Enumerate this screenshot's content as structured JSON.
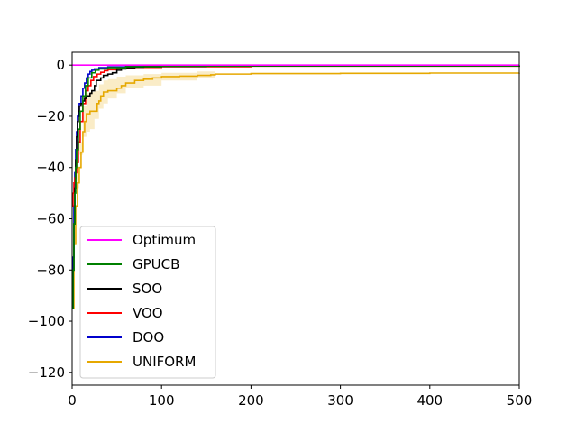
{
  "chart_data": {
    "type": "line",
    "title": "",
    "xlabel": "",
    "ylabel": "",
    "xlim": [
      0,
      500
    ],
    "ylim": [
      -125,
      5
    ],
    "x_ticks": [
      0,
      100,
      200,
      300,
      400,
      500
    ],
    "y_ticks": [
      0,
      -20,
      -40,
      -60,
      -80,
      -100,
      -120
    ],
    "x_tick_labels": [
      "0",
      "100",
      "200",
      "300",
      "400",
      "500"
    ],
    "y_tick_labels": [
      "0",
      "−20",
      "−40",
      "−60",
      "−80",
      "−100",
      "−120"
    ],
    "grid": false,
    "legend_position": "lower-left",
    "series": [
      {
        "name": "Optimum",
        "color": "#ff00ff",
        "x": [
          0,
          500
        ],
        "y": [
          0,
          0
        ]
      },
      {
        "name": "GPUCB",
        "color": "#008000",
        "x": [
          0,
          1,
          2,
          3,
          4,
          5,
          7,
          9,
          12,
          15,
          18,
          22,
          26,
          30,
          40,
          60,
          100,
          200,
          500
        ],
        "y": [
          -95,
          -80,
          -62,
          -50,
          -40,
          -33,
          -25,
          -18,
          -12,
          -8,
          -5,
          -3,
          -2,
          -1.5,
          -1,
          -0.6,
          -0.4,
          -0.3,
          -0.2
        ]
      },
      {
        "name": "SOO",
        "color": "#000000",
        "x": [
          0,
          1,
          2,
          3,
          4,
          5,
          6,
          7,
          8,
          10,
          12,
          14,
          16,
          20,
          22,
          25,
          27,
          32,
          35,
          40,
          45,
          50,
          55,
          60,
          70,
          80,
          100,
          150,
          500
        ],
        "y": [
          -95,
          -80,
          -62,
          -48,
          -37,
          -28,
          -22,
          -18,
          -16,
          -15,
          -14,
          -13,
          -12,
          -11,
          -10,
          -8,
          -6,
          -5,
          -4,
          -3.5,
          -3,
          -2,
          -1.5,
          -1,
          -0.8,
          -0.6,
          -0.5,
          -0.3,
          -0.2
        ]
      },
      {
        "name": "VOO",
        "color": "#ff0000",
        "x": [
          0,
          1,
          2,
          3,
          4,
          5,
          7,
          9,
          12,
          15,
          18,
          21,
          24,
          28,
          32,
          36,
          40,
          50,
          70,
          100,
          200,
          500
        ],
        "y": [
          -55,
          -50,
          -46,
          -44,
          -42,
          -38,
          -30,
          -22,
          -15,
          -10,
          -8,
          -6,
          -4.5,
          -3.5,
          -2.8,
          -2.2,
          -1.8,
          -1.3,
          -0.9,
          -0.6,
          -0.4,
          -0.3
        ]
      },
      {
        "name": "DOO",
        "color": "#0000cc",
        "x": [
          0,
          1,
          2,
          3,
          4,
          5,
          6,
          8,
          10,
          12,
          14,
          16,
          18,
          20,
          22,
          25,
          30,
          40,
          60,
          100,
          200,
          500
        ],
        "y": [
          -95,
          -75,
          -55,
          -42,
          -33,
          -26,
          -20,
          -15,
          -12,
          -9,
          -7,
          -5,
          -3.5,
          -2.5,
          -2,
          -1.5,
          -1,
          -0.7,
          -0.5,
          -0.3,
          -0.2,
          -0.1
        ]
      },
      {
        "name": "UNIFORM",
        "color": "#e6a800",
        "x": [
          0,
          2,
          4,
          6,
          8,
          10,
          12,
          14,
          16,
          20,
          25,
          28,
          30,
          32,
          35,
          40,
          45,
          50,
          55,
          60,
          70,
          80,
          90,
          100,
          120,
          140,
          155,
          160,
          200,
          300,
          400,
          500
        ],
        "y": [
          -95,
          -70,
          -55,
          -46,
          -40,
          -34,
          -26,
          -22,
          -19,
          -18,
          -18,
          -15,
          -14,
          -12,
          -10.5,
          -10,
          -10,
          -9,
          -8,
          -7,
          -6,
          -5.5,
          -5,
          -4.5,
          -4.3,
          -4,
          -3.8,
          -3.5,
          -3.3,
          -3.2,
          -3.1,
          -3
        ]
      }
    ],
    "bands": [
      {
        "series": "UNIFORM",
        "color": "#e6a800",
        "opacity": 0.22,
        "x": [
          4,
          8,
          12,
          16,
          20,
          25,
          30,
          35,
          40,
          50,
          60,
          80,
          100,
          140,
          160
        ],
        "y_low": [
          -60,
          -48,
          -35,
          -28,
          -26,
          -25,
          -21,
          -17,
          -15,
          -13,
          -11,
          -9,
          -8,
          -6,
          -5
        ],
        "y_high": [
          -40,
          -30,
          -16,
          -11,
          -10.5,
          -10,
          -7.5,
          -6,
          -5.5,
          -4.5,
          -4,
          -3.5,
          -3,
          -2.5,
          -2
        ]
      }
    ]
  }
}
